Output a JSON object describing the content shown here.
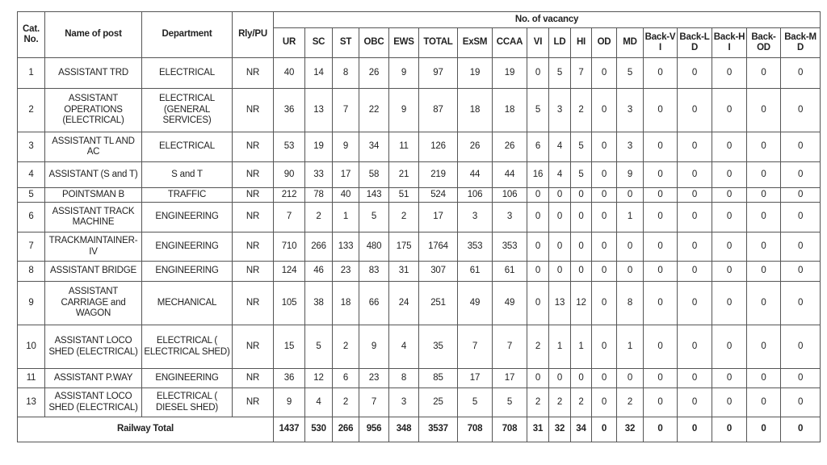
{
  "headers": {
    "cat_no": "Cat. No.",
    "name_of_post": "Name of post",
    "department": "Department",
    "rly_pu": "Rly/PU",
    "vacancy_group": "No. of vacancy",
    "vacancy_columns": [
      "UR",
      "SC",
      "ST",
      "OBC",
      "EWS",
      "TOTAL",
      "ExSM",
      "CCAA",
      "VI",
      "LD",
      "HI",
      "OD",
      "MD",
      "Back-VI",
      "Back-LD",
      "Back-HI",
      "Back-OD",
      "Back-MD"
    ]
  },
  "rows": [
    {
      "cat": "1",
      "post": "ASSISTANT TRD",
      "dept": "ELECTRICAL",
      "rly": "NR",
      "v": [
        "40",
        "14",
        "8",
        "26",
        "9",
        "97",
        "19",
        "19",
        "0",
        "5",
        "7",
        "0",
        "5",
        "0",
        "0",
        "0",
        "0",
        "0"
      ]
    },
    {
      "cat": "2",
      "post": "ASSISTANT OPERATIONS (ELECTRICAL)",
      "dept": "ELECTRICAL (GENERAL SERVICES)",
      "rly": "NR",
      "v": [
        "36",
        "13",
        "7",
        "22",
        "9",
        "87",
        "18",
        "18",
        "5",
        "3",
        "2",
        "0",
        "3",
        "0",
        "0",
        "0",
        "0",
        "0"
      ]
    },
    {
      "cat": "3",
      "post": "ASSISTANT TL AND AC",
      "dept": "ELECTRICAL",
      "rly": "NR",
      "v": [
        "53",
        "19",
        "9",
        "34",
        "11",
        "126",
        "26",
        "26",
        "6",
        "4",
        "5",
        "0",
        "3",
        "0",
        "0",
        "0",
        "0",
        "0"
      ]
    },
    {
      "cat": "4",
      "post": "ASSISTANT (S and T)",
      "dept": "S and T",
      "rly": "NR",
      "v": [
        "90",
        "33",
        "17",
        "58",
        "21",
        "219",
        "44",
        "44",
        "16",
        "4",
        "5",
        "0",
        "9",
        "0",
        "0",
        "0",
        "0",
        "0"
      ]
    },
    {
      "cat": "5",
      "post": "POINTSMAN B",
      "dept": "TRAFFIC",
      "rly": "NR",
      "v": [
        "212",
        "78",
        "40",
        "143",
        "51",
        "524",
        "106",
        "106",
        "0",
        "0",
        "0",
        "0",
        "0",
        "0",
        "0",
        "0",
        "0",
        "0"
      ]
    },
    {
      "cat": "6",
      "post": "ASSISTANT TRACK MACHINE",
      "dept": "ENGINEERING",
      "rly": "NR",
      "v": [
        "7",
        "2",
        "1",
        "5",
        "2",
        "17",
        "3",
        "3",
        "0",
        "0",
        "0",
        "0",
        "1",
        "0",
        "0",
        "0",
        "0",
        "0"
      ]
    },
    {
      "cat": "7",
      "post": "TRACKMAINTAINER-IV",
      "dept": "ENGINEERING",
      "rly": "NR",
      "v": [
        "710",
        "266",
        "133",
        "480",
        "175",
        "1764",
        "353",
        "353",
        "0",
        "0",
        "0",
        "0",
        "0",
        "0",
        "0",
        "0",
        "0",
        "0"
      ]
    },
    {
      "cat": "8",
      "post": "ASSISTANT BRIDGE",
      "dept": "ENGINEERING",
      "rly": "NR",
      "v": [
        "124",
        "46",
        "23",
        "83",
        "31",
        "307",
        "61",
        "61",
        "0",
        "0",
        "0",
        "0",
        "0",
        "0",
        "0",
        "0",
        "0",
        "0"
      ]
    },
    {
      "cat": "9",
      "post": "ASSISTANT CARRIAGE and WAGON",
      "dept": "MECHANICAL",
      "rly": "NR",
      "v": [
        "105",
        "38",
        "18",
        "66",
        "24",
        "251",
        "49",
        "49",
        "0",
        "13",
        "12",
        "0",
        "8",
        "0",
        "0",
        "0",
        "0",
        "0"
      ]
    },
    {
      "cat": "10",
      "post": "ASSISTANT LOCO SHED (ELECTRICAL)",
      "dept": "ELECTRICAL ( ELECTRICAL SHED)",
      "rly": "NR",
      "v": [
        "15",
        "5",
        "2",
        "9",
        "4",
        "35",
        "7",
        "7",
        "2",
        "1",
        "1",
        "0",
        "1",
        "0",
        "0",
        "0",
        "0",
        "0"
      ]
    },
    {
      "cat": "11",
      "post": "ASSISTANT P.WAY",
      "dept": "ENGINEERING",
      "rly": "NR",
      "v": [
        "36",
        "12",
        "6",
        "23",
        "8",
        "85",
        "17",
        "17",
        "0",
        "0",
        "0",
        "0",
        "0",
        "0",
        "0",
        "0",
        "0",
        "0"
      ]
    },
    {
      "cat": "13",
      "post": "ASSISTANT LOCO SHED (ELECTRICAL)",
      "dept": "ELECTRICAL ( DIESEL SHED)",
      "rly": "NR",
      "v": [
        "9",
        "4",
        "2",
        "7",
        "3",
        "25",
        "5",
        "5",
        "2",
        "2",
        "2",
        "0",
        "2",
        "0",
        "0",
        "0",
        "0",
        "0"
      ]
    }
  ],
  "total": {
    "label": "Railway Total",
    "v": [
      "1437",
      "530",
      "266",
      "956",
      "348",
      "3537",
      "708",
      "708",
      "31",
      "32",
      "34",
      "0",
      "32",
      "0",
      "0",
      "0",
      "0",
      "0"
    ]
  }
}
